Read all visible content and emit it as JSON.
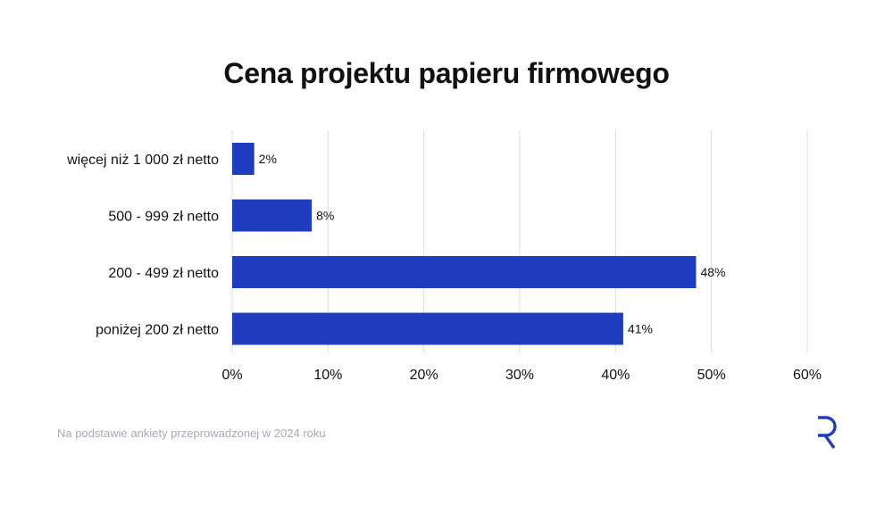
{
  "chart_data": {
    "type": "bar",
    "orientation": "horizontal",
    "title": "Cena projektu papieru firmowego",
    "categories": [
      "więcej niż 1 000 zł netto",
      "500 - 999 zł netto",
      "200 - 499 zł netto",
      "poniżej 200 zł netto"
    ],
    "values": [
      2.3,
      8.3,
      48.4,
      40.8
    ],
    "value_labels": [
      "2%",
      "8%",
      "48%",
      "41%"
    ],
    "xlim": [
      0,
      60
    ],
    "x_ticks": [
      "0%",
      "10%",
      "20%",
      "30%",
      "40%",
      "50%",
      "60%"
    ],
    "xlabel": "",
    "ylabel": "",
    "grid": "vertical",
    "bar_color": "#1f3ebf"
  },
  "footer": {
    "source": "Na podstawie ankiety przeprowadzonej w 2024 roku",
    "logo_icon": "r-brand-logo",
    "logo_color": "#1f3ebf"
  }
}
